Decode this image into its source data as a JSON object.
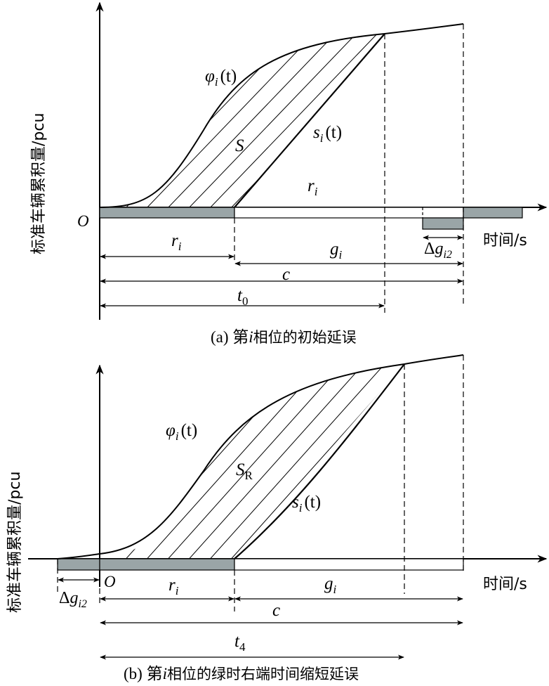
{
  "panel_a": {
    "ylabel": "标准车辆累积量/pcu",
    "origin": "O",
    "phi_base": "φ",
    "phi_sub": "i",
    "phi_arg": "(t)",
    "s_base": "s",
    "s_sub": "i",
    "s_arg": "(t)",
    "area": "S",
    "r_top_base": "r",
    "r_top_sub": "i",
    "r_base": "r",
    "r_sub": "i",
    "g_base": "g",
    "g_sub": "i",
    "c": "c",
    "t_base": "t",
    "t_sub": "0",
    "dg_delta": "Δ",
    "dg_base": "g",
    "dg_sub": "i2",
    "xlabel": "时间/s",
    "caption_pre": "(a) 第",
    "caption_i": "i",
    "caption_post": "相位的初始延误"
  },
  "panel_b": {
    "ylabel": "标准车辆累积量/pcu",
    "origin": "O",
    "phi_base": "φ",
    "phi_sub": "i",
    "phi_arg": "(t)",
    "s_base": "s",
    "s_sub": "i",
    "s_arg": "(t)",
    "area_base": "S",
    "area_sub": "R",
    "r_base": "r",
    "r_sub": "i",
    "g_base": "g",
    "g_sub": "i",
    "c": "c",
    "t_base": "t",
    "t_sub": "4",
    "dg_delta": "Δ",
    "dg_base": "g",
    "dg_sub": "i2",
    "xlabel": "时间/s",
    "caption_pre": "(b) 第",
    "caption_i": "i",
    "caption_post": "相位的绿时右端时间缩短延误"
  },
  "colors": {
    "red_bar": "#9aa5a7",
    "line": "#000000"
  }
}
